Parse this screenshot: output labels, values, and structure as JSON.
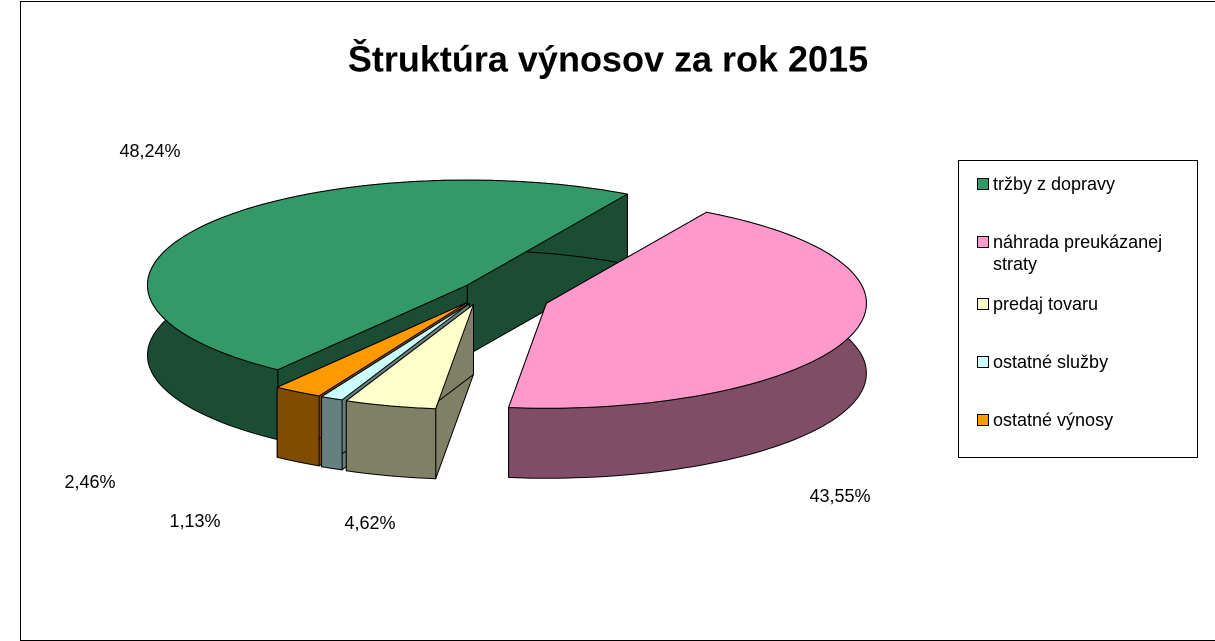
{
  "chart_data": {
    "type": "pie3d",
    "title": "Štruktúra výnosov za rok 2015",
    "categories": [
      "tržby z dopravy",
      "náhrada preukázanej straty",
      "predaj tovaru",
      "ostatné služby",
      "ostatné výnosy"
    ],
    "values": [
      48.24,
      43.55,
      4.62,
      1.13,
      2.46
    ],
    "value_labels": [
      "48,24%",
      "43,55%",
      "4,62%",
      "1,13%",
      "2,46%"
    ],
    "colors": [
      "#339966",
      "#ff99cc",
      "#ffffcc",
      "#ccffff",
      "#ff9900"
    ],
    "legend": "right"
  }
}
